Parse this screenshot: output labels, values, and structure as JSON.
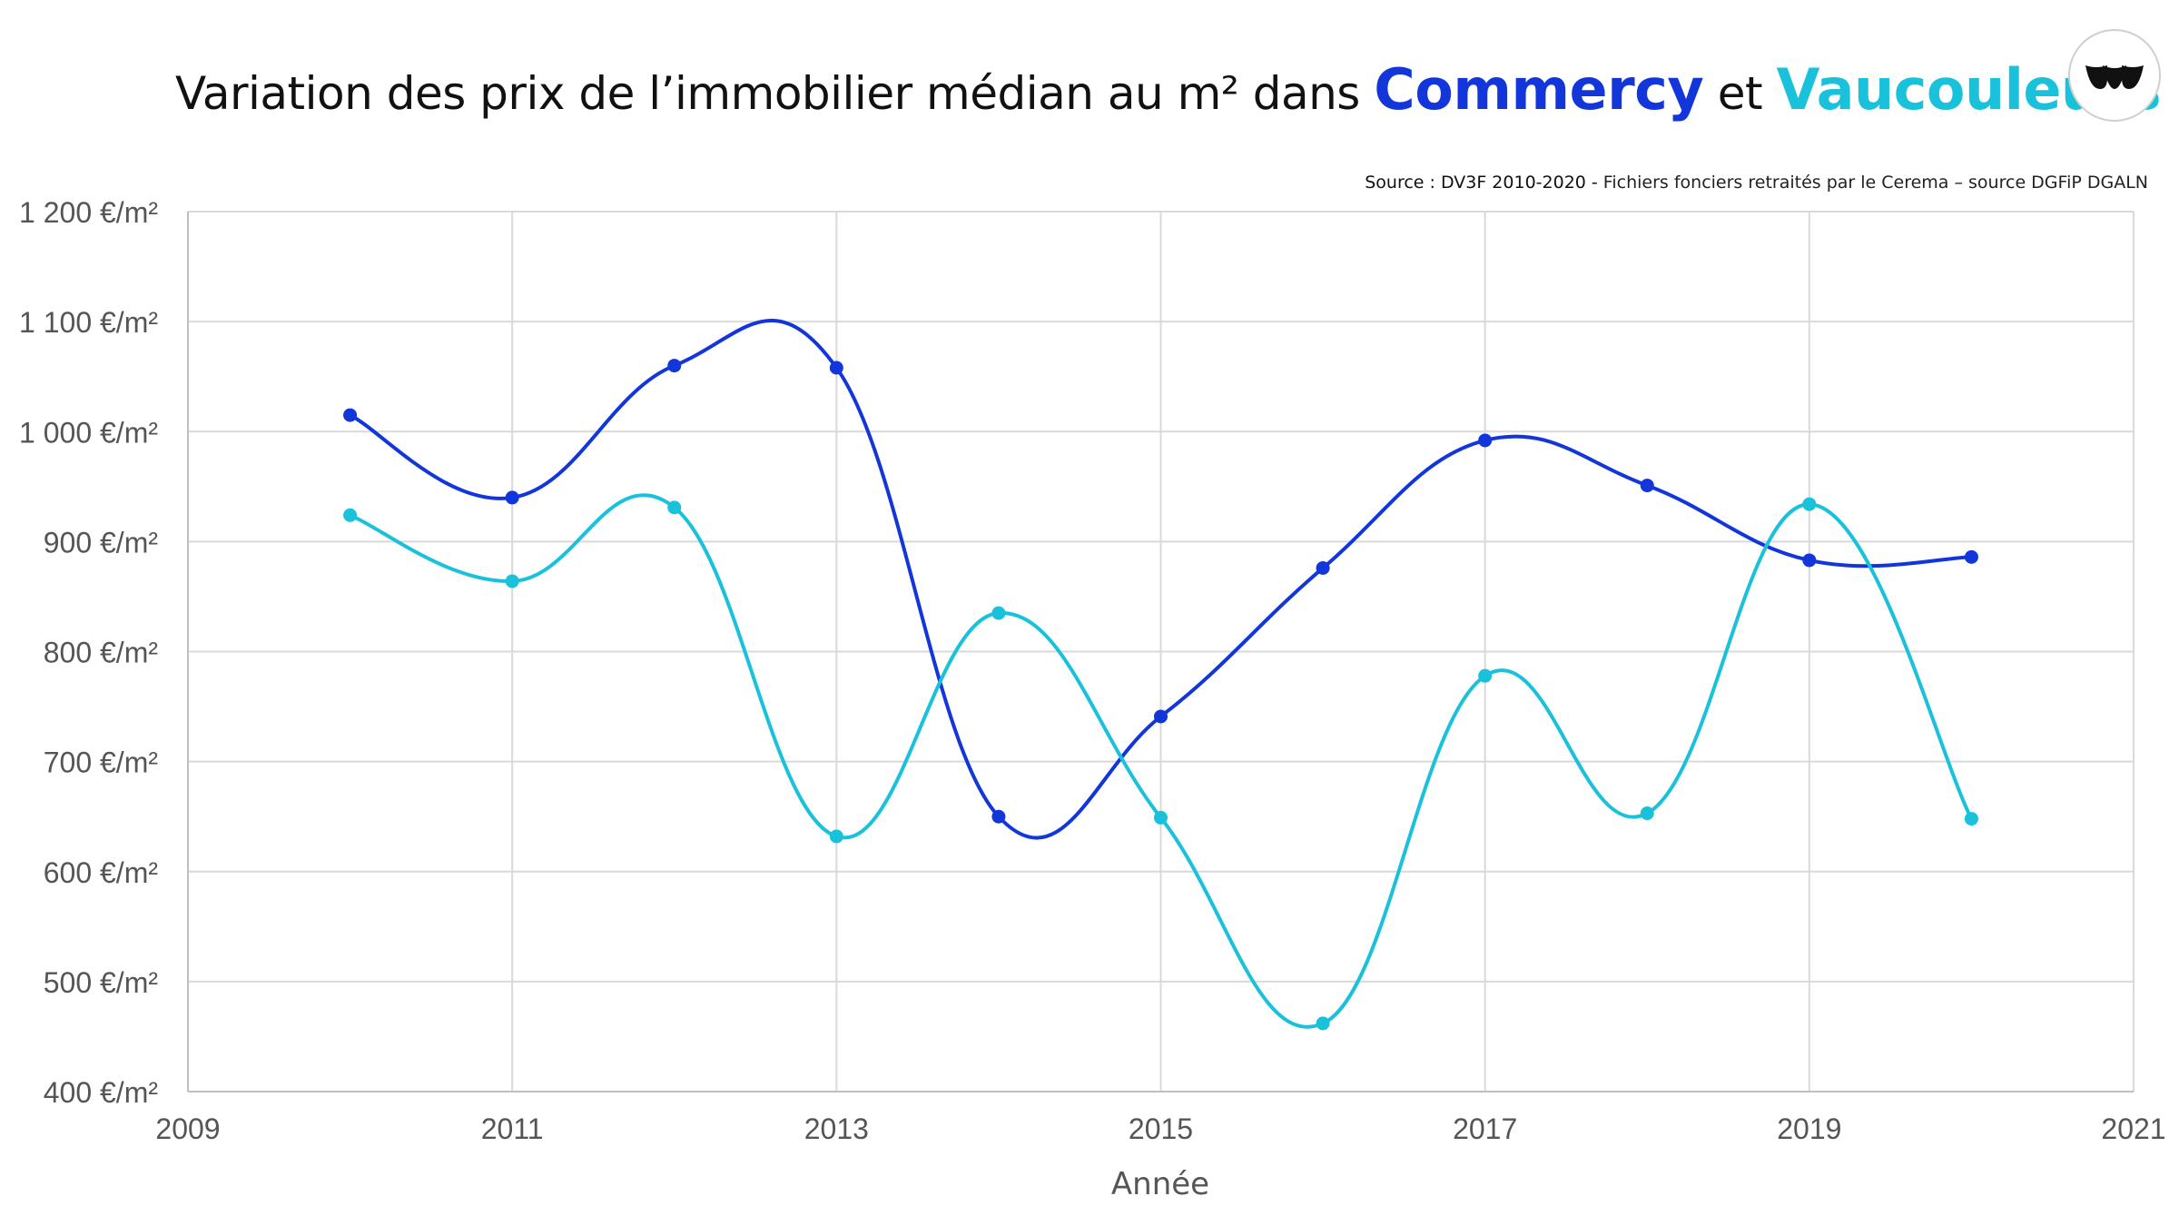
{
  "title": {
    "prefix": "Variation des prix de l’immobilier médian au m² dans",
    "series1": "Commercy",
    "middle": "et",
    "series2": "Vaucouleurs"
  },
  "source": {
    "lead": "Source : DV3F 2010-2020 -",
    "rest": " Fichiers fonciers retraités par le Cerema – source DGFiP DGALN"
  },
  "colors": {
    "commercy": "#1236d9",
    "vaucouleurs": "#19c2da",
    "grid": "#d9d9d9",
    "axis_text": "#555555"
  },
  "chart_data": {
    "type": "line",
    "xlabel": "Année",
    "ylabel": "",
    "xlim": [
      2009,
      2021
    ],
    "ylim": [
      400,
      1200
    ],
    "x_ticks": [
      "2009",
      "2011",
      "2013",
      "2015",
      "2017",
      "2019",
      "2021"
    ],
    "y_ticks": [
      "400 €/m²",
      "500 €/m²",
      "600 €/m²",
      "700 €/m²",
      "800 €/m²",
      "900 €/m²",
      "1 000 €/m²",
      "1 100 €/m²",
      "1 200 €/m²"
    ],
    "grid": true,
    "smooth": true,
    "x": [
      2010,
      2011,
      2012,
      2013,
      2014,
      2015,
      2016,
      2017,
      2018,
      2019,
      2020
    ],
    "series": [
      {
        "name": "Commercy",
        "values": [
          1015,
          940,
          1060,
          1058,
          650,
          741,
          876,
          992,
          951,
          883,
          886
        ]
      },
      {
        "name": "Vaucouleurs",
        "values": [
          924,
          864,
          931,
          632,
          835,
          649,
          462,
          778,
          653,
          934,
          648
        ]
      }
    ]
  }
}
